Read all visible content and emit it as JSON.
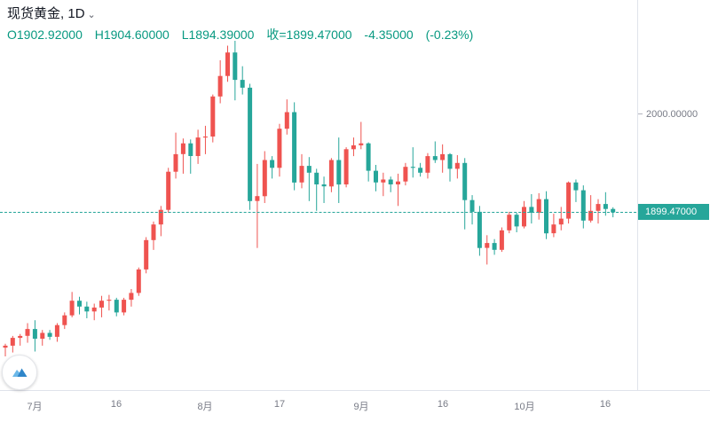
{
  "header": {
    "symbol": "现货黄金",
    "separator": ", ",
    "interval": "1D",
    "caret": "⌄",
    "ohlc": {
      "open": "O1902.92000",
      "high": "H1904.60000",
      "low": "L1894.39000",
      "close": "收=1899.47000",
      "change": "-4.35000",
      "change_pct": "(-0.23%)"
    }
  },
  "colors": {
    "up": "#ef5350",
    "down": "#26a69a",
    "ohlc_text": "#089981",
    "axis_text": "#787b86",
    "axis_border": "#e0e3eb",
    "current_line": "#26a69a",
    "badge_bg": "#26a69a",
    "logo_blue": "#2f86c9",
    "logo_light_blue": "#6cb8e8"
  },
  "price_axis": {
    "labels": [
      {
        "text": "2000.00000",
        "price": 2000
      }
    ],
    "current_badge": {
      "text": "1899.47000",
      "price": 1899.47
    }
  },
  "time_axis": {
    "labels": [
      {
        "text": "7月",
        "index": 4
      },
      {
        "text": "16",
        "index": 15
      },
      {
        "text": "8月",
        "index": 27
      },
      {
        "text": "17",
        "index": 37
      },
      {
        "text": "9月",
        "index": 48
      },
      {
        "text": "16",
        "index": 59
      },
      {
        "text": "10月",
        "index": 70
      },
      {
        "text": "16",
        "index": 81
      }
    ]
  },
  "chart_data": {
    "type": "candlestick",
    "title": "现货黄金 1D",
    "columns": [
      "open",
      "high",
      "low",
      "close"
    ],
    "ylim": [
      1752,
      2075
    ],
    "grid": false,
    "up_color_convention": "red=up, green=down (Chinese convention)",
    "dates": [
      "2020-06-25",
      "2020-06-26",
      "2020-06-29",
      "2020-06-30",
      "2020-07-01",
      "2020-07-02",
      "2020-07-03",
      "2020-07-06",
      "2020-07-07",
      "2020-07-08",
      "2020-07-09",
      "2020-07-10",
      "2020-07-13",
      "2020-07-14",
      "2020-07-15",
      "2020-07-16",
      "2020-07-17",
      "2020-07-20",
      "2020-07-21",
      "2020-07-22",
      "2020-07-23",
      "2020-07-24",
      "2020-07-27",
      "2020-07-28",
      "2020-07-29",
      "2020-07-30",
      "2020-07-31",
      "2020-08-03",
      "2020-08-04",
      "2020-08-05",
      "2020-08-06",
      "2020-08-07",
      "2020-08-10",
      "2020-08-11",
      "2020-08-12",
      "2020-08-13",
      "2020-08-14",
      "2020-08-17",
      "2020-08-18",
      "2020-08-19",
      "2020-08-20",
      "2020-08-21",
      "2020-08-24",
      "2020-08-25",
      "2020-08-26",
      "2020-08-27",
      "2020-08-28",
      "2020-08-31",
      "2020-09-01",
      "2020-09-02",
      "2020-09-03",
      "2020-09-04",
      "2020-09-07",
      "2020-09-08",
      "2020-09-09",
      "2020-09-10",
      "2020-09-11",
      "2020-09-14",
      "2020-09-15",
      "2020-09-16",
      "2020-09-17",
      "2020-09-18",
      "2020-09-21",
      "2020-09-22",
      "2020-09-23",
      "2020-09-24",
      "2020-09-25",
      "2020-09-28",
      "2020-09-29",
      "2020-09-30",
      "2020-10-01",
      "2020-10-02",
      "2020-10-05",
      "2020-10-06",
      "2020-10-07",
      "2020-10-08",
      "2020-10-09",
      "2020-10-12",
      "2020-10-13",
      "2020-10-14",
      "2020-10-15",
      "2020-10-16",
      "2020-10-19"
    ],
    "ohlc": [
      [
        1761,
        1765,
        1752,
        1763
      ],
      [
        1763,
        1773,
        1756,
        1771
      ],
      [
        1771,
        1775,
        1763,
        1773
      ],
      [
        1773,
        1786,
        1766,
        1780
      ],
      [
        1780,
        1789,
        1757,
        1770
      ],
      [
        1770,
        1779,
        1763,
        1776
      ],
      [
        1776,
        1779,
        1769,
        1772
      ],
      [
        1772,
        1786,
        1767,
        1784
      ],
      [
        1784,
        1797,
        1780,
        1794
      ],
      [
        1794,
        1818,
        1792,
        1809
      ],
      [
        1809,
        1813,
        1795,
        1803
      ],
      [
        1803,
        1808,
        1791,
        1798
      ],
      [
        1798,
        1806,
        1789,
        1802
      ],
      [
        1802,
        1814,
        1792,
        1809
      ],
      [
        1809,
        1815,
        1799,
        1810
      ],
      [
        1810,
        1812,
        1793,
        1797
      ],
      [
        1797,
        1812,
        1794,
        1810
      ],
      [
        1810,
        1821,
        1803,
        1817
      ],
      [
        1817,
        1843,
        1814,
        1841
      ],
      [
        1841,
        1874,
        1837,
        1871
      ],
      [
        1871,
        1890,
        1861,
        1887
      ],
      [
        1887,
        1906,
        1875,
        1902
      ],
      [
        1902,
        1945,
        1899,
        1941
      ],
      [
        1941,
        1981,
        1934,
        1959
      ],
      [
        1959,
        1975,
        1939,
        1970
      ],
      [
        1970,
        1974,
        1939,
        1957
      ],
      [
        1957,
        1984,
        1949,
        1976
      ],
      [
        1976,
        1988,
        1959,
        1977
      ],
      [
        1977,
        2020,
        1971,
        2018
      ],
      [
        2018,
        2055,
        2011,
        2039
      ],
      [
        2039,
        2070,
        2033,
        2063
      ],
      [
        2063,
        2075,
        2014,
        2035
      ],
      [
        2035,
        2049,
        2020,
        2027
      ],
      [
        2027,
        2031,
        1902,
        1911
      ],
      [
        1911,
        1949,
        1863,
        1916
      ],
      [
        1916,
        1962,
        1909,
        1953
      ],
      [
        1953,
        1957,
        1934,
        1945
      ],
      [
        1945,
        1990,
        1936,
        1985
      ],
      [
        1985,
        2015,
        1979,
        2002
      ],
      [
        2002,
        2012,
        1922,
        1930
      ],
      [
        1930,
        1959,
        1924,
        1947
      ],
      [
        1947,
        1956,
        1911,
        1940
      ],
      [
        1940,
        1944,
        1901,
        1928
      ],
      [
        1928,
        1936,
        1909,
        1926
      ],
      [
        1926,
        1955,
        1920,
        1953
      ],
      [
        1953,
        1976,
        1909,
        1928
      ],
      [
        1928,
        1966,
        1925,
        1964
      ],
      [
        1964,
        1976,
        1957,
        1968
      ],
      [
        1968,
        1992,
        1964,
        1970
      ],
      [
        1970,
        1971,
        1931,
        1942
      ],
      [
        1942,
        1948,
        1921,
        1930
      ],
      [
        1930,
        1940,
        1916,
        1933
      ],
      [
        1933,
        1936,
        1920,
        1928
      ],
      [
        1928,
        1939,
        1906,
        1931
      ],
      [
        1931,
        1950,
        1927,
        1946
      ],
      [
        1946,
        1966,
        1935,
        1945
      ],
      [
        1945,
        1950,
        1936,
        1940
      ],
      [
        1940,
        1960,
        1934,
        1957
      ],
      [
        1957,
        1972,
        1950,
        1953
      ],
      [
        1953,
        1969,
        1940,
        1959
      ],
      [
        1959,
        1960,
        1931,
        1944
      ],
      [
        1944,
        1958,
        1934,
        1950
      ],
      [
        1950,
        1955,
        1882,
        1912
      ],
      [
        1912,
        1917,
        1887,
        1900
      ],
      [
        1900,
        1906,
        1855,
        1863
      ],
      [
        1863,
        1876,
        1846,
        1868
      ],
      [
        1868,
        1872,
        1856,
        1861
      ],
      [
        1861,
        1884,
        1859,
        1881
      ],
      [
        1881,
        1900,
        1878,
        1897
      ],
      [
        1897,
        1899,
        1879,
        1885
      ],
      [
        1885,
        1911,
        1883,
        1905
      ],
      [
        1905,
        1918,
        1888,
        1899
      ],
      [
        1899,
        1919,
        1892,
        1913
      ],
      [
        1913,
        1921,
        1872,
        1878
      ],
      [
        1878,
        1898,
        1874,
        1887
      ],
      [
        1887,
        1905,
        1881,
        1893
      ],
      [
        1893,
        1931,
        1888,
        1930
      ],
      [
        1930,
        1933,
        1910,
        1922
      ],
      [
        1922,
        1927,
        1883,
        1891
      ],
      [
        1891,
        1917,
        1889,
        1901
      ],
      [
        1901,
        1913,
        1888,
        1908
      ],
      [
        1908,
        1920,
        1896,
        1902.92
      ],
      [
        1902.92,
        1904.6,
        1894.39,
        1899.47
      ]
    ]
  }
}
